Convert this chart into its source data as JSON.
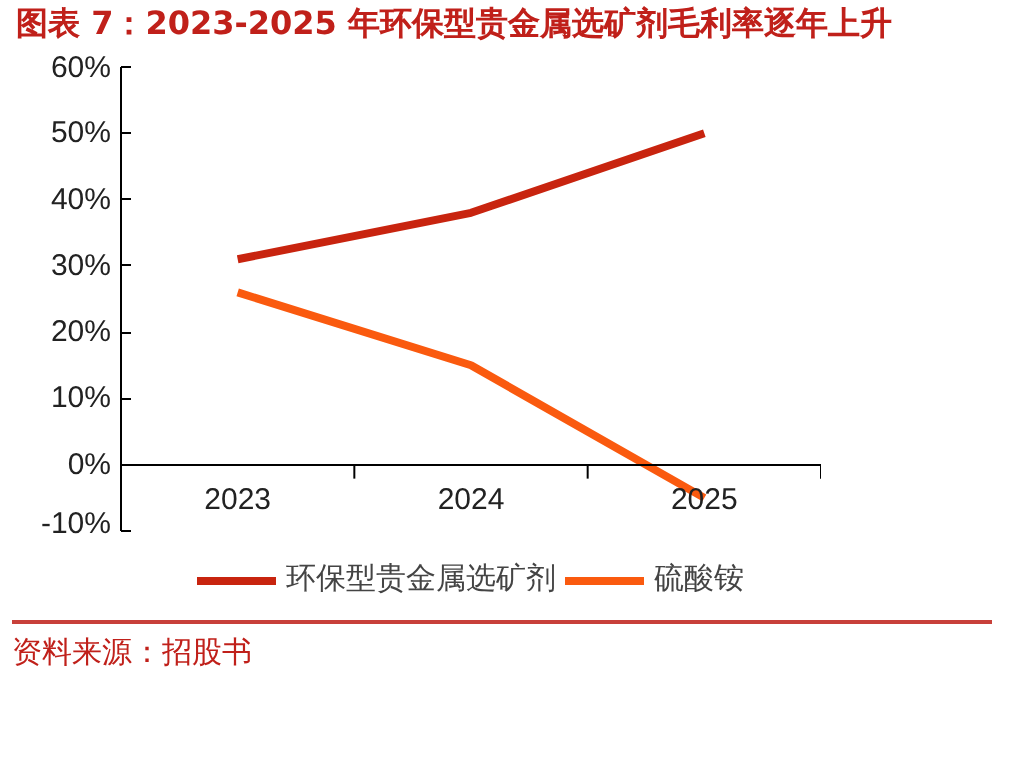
{
  "chart_data": {
    "type": "line",
    "title": "图表 7：2023-2025 年环保型贵金属选矿剂毛利率逐年上升",
    "categories": [
      "2023",
      "2024",
      "2025"
    ],
    "series": [
      {
        "name": "环保型贵金属选矿剂",
        "color": "#c8240f",
        "values": [
          31,
          38,
          50
        ]
      },
      {
        "name": "硫酸铵",
        "color": "#fa5a0f",
        "values": [
          26,
          15,
          -5
        ]
      }
    ],
    "ylim": [
      -10,
      60
    ],
    "yticks": [
      {
        "value": -10,
        "label": "-10%"
      },
      {
        "value": 0,
        "label": "0%"
      },
      {
        "value": 10,
        "label": "10%"
      },
      {
        "value": 20,
        "label": "20%"
      },
      {
        "value": 30,
        "label": "30%"
      },
      {
        "value": 40,
        "label": "40%"
      },
      {
        "value": 50,
        "label": "50%"
      },
      {
        "value": 60,
        "label": "60%"
      }
    ],
    "grid": false,
    "legend": "bottom",
    "line_style": "solid",
    "annotations": [
      "资料来源：招股书"
    ]
  }
}
